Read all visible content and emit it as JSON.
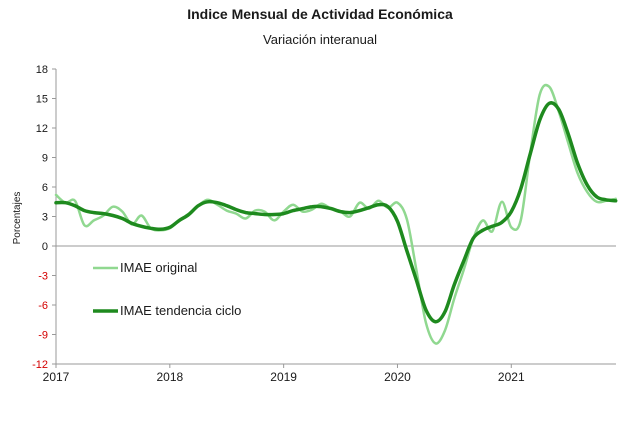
{
  "chart_data": {
    "type": "line",
    "title": "Indice Mensual de  Actividad Económica",
    "subtitle": "Variación interanual",
    "ylabel": "Porcentajes",
    "xlabel": "",
    "ylim": [
      -12,
      18
    ],
    "yticks": [
      18,
      15,
      12,
      9,
      6,
      3,
      0,
      -3,
      -6,
      -9,
      -12
    ],
    "xlim": [
      2017.0,
      2021.92
    ],
    "xticks": [
      2017,
      2018,
      2019,
      2020,
      2021
    ],
    "grid": false,
    "legend_position": "bottom-left",
    "series": [
      {
        "name": "IMAE original",
        "color": "#90d890",
        "x": [
          2017.0,
          2017.083,
          2017.167,
          2017.25,
          2017.333,
          2017.417,
          2017.5,
          2017.583,
          2017.667,
          2017.75,
          2017.833,
          2017.917,
          2018.0,
          2018.083,
          2018.167,
          2018.25,
          2018.333,
          2018.417,
          2018.5,
          2018.583,
          2018.667,
          2018.75,
          2018.833,
          2018.917,
          2019.0,
          2019.083,
          2019.167,
          2019.25,
          2019.333,
          2019.417,
          2019.5,
          2019.583,
          2019.667,
          2019.75,
          2019.833,
          2019.917,
          2020.0,
          2020.083,
          2020.167,
          2020.25,
          2020.333,
          2020.417,
          2020.5,
          2020.583,
          2020.667,
          2020.75,
          2020.833,
          2020.917,
          2021.0,
          2021.083,
          2021.167,
          2021.25,
          2021.333,
          2021.417,
          2021.5,
          2021.583,
          2021.667,
          2021.75,
          2021.833,
          2021.917
        ],
        "values": [
          5.2,
          4.4,
          4.6,
          2.1,
          2.6,
          3.1,
          4.0,
          3.5,
          2.2,
          3.1,
          1.8,
          1.6,
          1.8,
          2.6,
          3.3,
          4.1,
          4.7,
          4.2,
          3.6,
          3.3,
          2.8,
          3.6,
          3.5,
          2.6,
          3.5,
          4.2,
          3.5,
          3.7,
          4.3,
          3.8,
          3.5,
          3.0,
          4.4,
          3.8,
          4.6,
          3.9,
          4.4,
          2.7,
          -2.5,
          -7.8,
          -9.9,
          -8.6,
          -5.3,
          -2.4,
          0.8,
          2.6,
          1.5,
          4.5,
          1.9,
          2.6,
          9.5,
          15.4,
          16.2,
          13.7,
          10.5,
          7.4,
          5.5,
          4.5,
          4.6,
          4.8
        ]
      },
      {
        "name": "IMAE tendencia ciclo",
        "color": "#1e8a1e",
        "x": [
          2017.0,
          2017.083,
          2017.167,
          2017.25,
          2017.333,
          2017.417,
          2017.5,
          2017.583,
          2017.667,
          2017.75,
          2017.833,
          2017.917,
          2018.0,
          2018.083,
          2018.167,
          2018.25,
          2018.333,
          2018.417,
          2018.5,
          2018.583,
          2018.667,
          2018.75,
          2018.833,
          2018.917,
          2019.0,
          2019.083,
          2019.167,
          2019.25,
          2019.333,
          2019.417,
          2019.5,
          2019.583,
          2019.667,
          2019.75,
          2019.833,
          2019.917,
          2020.0,
          2020.083,
          2020.167,
          2020.25,
          2020.333,
          2020.417,
          2020.5,
          2020.583,
          2020.667,
          2020.75,
          2020.833,
          2020.917,
          2021.0,
          2021.083,
          2021.167,
          2021.25,
          2021.333,
          2021.417,
          2021.5,
          2021.583,
          2021.667,
          2021.75,
          2021.833,
          2021.917
        ],
        "values": [
          4.4,
          4.4,
          4.1,
          3.6,
          3.4,
          3.3,
          3.1,
          2.8,
          2.3,
          2.0,
          1.8,
          1.7,
          1.9,
          2.6,
          3.2,
          4.1,
          4.5,
          4.4,
          4.1,
          3.7,
          3.4,
          3.3,
          3.2,
          3.2,
          3.3,
          3.6,
          3.8,
          4.0,
          4.0,
          3.8,
          3.5,
          3.4,
          3.6,
          3.9,
          4.2,
          4.0,
          2.5,
          -0.5,
          -3.5,
          -6.5,
          -7.7,
          -6.7,
          -3.9,
          -1.5,
          0.8,
          1.6,
          2.0,
          2.4,
          3.5,
          5.8,
          9.4,
          12.8,
          14.5,
          13.9,
          11.4,
          8.4,
          6.2,
          5.0,
          4.7,
          4.6
        ]
      }
    ]
  }
}
